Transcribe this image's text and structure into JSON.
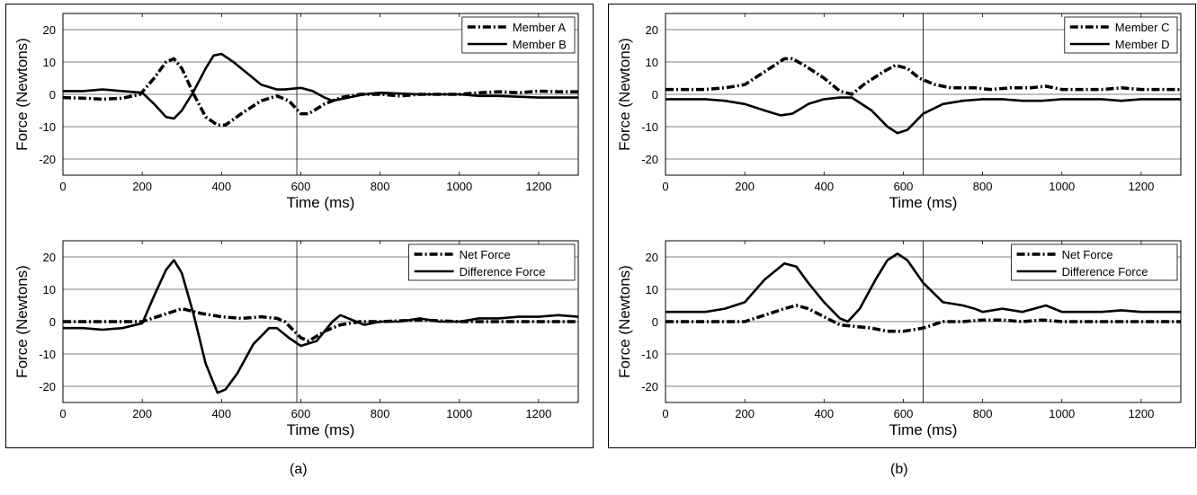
{
  "figure": {
    "panel_labels": [
      "(a)",
      "(b)"
    ]
  },
  "chart_data": [
    {
      "id": "a-top",
      "type": "line",
      "xlabel": "Time (ms)",
      "ylabel": "Force (Newtons)",
      "xlim": [
        0,
        1300
      ],
      "ylim": [
        -25,
        25
      ],
      "xticks": [
        0,
        200,
        400,
        600,
        800,
        1000,
        1200
      ],
      "yticks": [
        -20,
        -10,
        0,
        10,
        20
      ],
      "grid": "horizontal",
      "legend": "top-right",
      "vline": 590,
      "series": [
        {
          "name": "Member A",
          "style": "dashdot",
          "points": [
            [
              0,
              -1
            ],
            [
              50,
              -1.2
            ],
            [
              100,
              -1.5
            ],
            [
              150,
              -1.2
            ],
            [
              195,
              0
            ],
            [
              230,
              5
            ],
            [
              260,
              10
            ],
            [
              280,
              11
            ],
            [
              300,
              8
            ],
            [
              330,
              0
            ],
            [
              360,
              -7
            ],
            [
              390,
              -9.5
            ],
            [
              410,
              -9.5
            ],
            [
              450,
              -6
            ],
            [
              500,
              -2
            ],
            [
              540,
              -0.5
            ],
            [
              570,
              -2
            ],
            [
              600,
              -6
            ],
            [
              620,
              -6
            ],
            [
              660,
              -3
            ],
            [
              700,
              -1
            ],
            [
              750,
              0
            ],
            [
              800,
              0
            ],
            [
              850,
              -0.5
            ],
            [
              900,
              0
            ],
            [
              950,
              0
            ],
            [
              1000,
              0
            ],
            [
              1050,
              0.5
            ],
            [
              1100,
              0.8
            ],
            [
              1150,
              0.5
            ],
            [
              1200,
              1
            ],
            [
              1250,
              0.8
            ],
            [
              1300,
              0.8
            ]
          ]
        },
        {
          "name": "Member B",
          "style": "solid",
          "points": [
            [
              0,
              1
            ],
            [
              50,
              1
            ],
            [
              100,
              1.5
            ],
            [
              150,
              1
            ],
            [
              200,
              0.5
            ],
            [
              230,
              -3
            ],
            [
              260,
              -7
            ],
            [
              280,
              -7.5
            ],
            [
              300,
              -5
            ],
            [
              330,
              1
            ],
            [
              360,
              8
            ],
            [
              380,
              12
            ],
            [
              400,
              12.5
            ],
            [
              430,
              10
            ],
            [
              470,
              6
            ],
            [
              500,
              3
            ],
            [
              540,
              1.5
            ],
            [
              560,
              1.5
            ],
            [
              600,
              2
            ],
            [
              630,
              1
            ],
            [
              660,
              -1
            ],
            [
              680,
              -2
            ],
            [
              720,
              -1
            ],
            [
              760,
              0
            ],
            [
              800,
              0.5
            ],
            [
              900,
              0
            ],
            [
              1000,
              0
            ],
            [
              1050,
              -0.5
            ],
            [
              1100,
              -0.5
            ],
            [
              1200,
              -1
            ],
            [
              1300,
              -1
            ]
          ]
        }
      ]
    },
    {
      "id": "a-bottom",
      "type": "line",
      "xlabel": "Time (ms)",
      "ylabel": "Force (Newtons)",
      "xlim": [
        0,
        1300
      ],
      "ylim": [
        -25,
        25
      ],
      "xticks": [
        0,
        200,
        400,
        600,
        800,
        1000,
        1200
      ],
      "yticks": [
        -20,
        -10,
        0,
        10,
        20
      ],
      "grid": "horizontal",
      "legend": "top-right",
      "vline": 590,
      "series": [
        {
          "name": "Net Force",
          "style": "dashdot",
          "points": [
            [
              0,
              0
            ],
            [
              100,
              0
            ],
            [
              200,
              0
            ],
            [
              250,
              2
            ],
            [
              300,
              4
            ],
            [
              350,
              2.5
            ],
            [
              400,
              1.5
            ],
            [
              450,
              1
            ],
            [
              500,
              1.5
            ],
            [
              540,
              1
            ],
            [
              560,
              0
            ],
            [
              600,
              -5
            ],
            [
              620,
              -6
            ],
            [
              660,
              -3
            ],
            [
              700,
              -1
            ],
            [
              750,
              0
            ],
            [
              800,
              0
            ],
            [
              900,
              0.5
            ],
            [
              1000,
              0
            ],
            [
              1100,
              0
            ],
            [
              1200,
              0
            ],
            [
              1300,
              0
            ]
          ]
        },
        {
          "name": "Difference Force",
          "style": "solid",
          "points": [
            [
              0,
              -2
            ],
            [
              50,
              -2
            ],
            [
              100,
              -2.5
            ],
            [
              150,
              -2
            ],
            [
              200,
              -0.5
            ],
            [
              230,
              8
            ],
            [
              260,
              16
            ],
            [
              280,
              19
            ],
            [
              300,
              15
            ],
            [
              330,
              2
            ],
            [
              360,
              -13
            ],
            [
              390,
              -22
            ],
            [
              410,
              -21
            ],
            [
              440,
              -16
            ],
            [
              480,
              -7
            ],
            [
              520,
              -2
            ],
            [
              540,
              -2
            ],
            [
              570,
              -5
            ],
            [
              600,
              -7.5
            ],
            [
              640,
              -6
            ],
            [
              680,
              0
            ],
            [
              700,
              2
            ],
            [
              720,
              1
            ],
            [
              760,
              -1
            ],
            [
              800,
              0
            ],
            [
              850,
              0
            ],
            [
              900,
              1
            ],
            [
              950,
              0
            ],
            [
              1000,
              0
            ],
            [
              1050,
              1
            ],
            [
              1100,
              1
            ],
            [
              1150,
              1.5
            ],
            [
              1200,
              1.5
            ],
            [
              1250,
              2
            ],
            [
              1300,
              1.5
            ]
          ]
        }
      ]
    },
    {
      "id": "b-top",
      "type": "line",
      "xlabel": "Time (ms)",
      "ylabel": "Force (Newtons)",
      "xlim": [
        0,
        1300
      ],
      "ylim": [
        -25,
        25
      ],
      "xticks": [
        0,
        200,
        400,
        600,
        800,
        1000,
        1200
      ],
      "yticks": [
        -20,
        -10,
        0,
        10,
        20
      ],
      "grid": "horizontal",
      "legend": "top-right",
      "vline": 650,
      "series": [
        {
          "name": "Member C",
          "style": "dashdot",
          "points": [
            [
              0,
              1.5
            ],
            [
              50,
              1.5
            ],
            [
              100,
              1.5
            ],
            [
              150,
              2
            ],
            [
              200,
              3
            ],
            [
              250,
              7
            ],
            [
              300,
              11
            ],
            [
              320,
              11
            ],
            [
              350,
              9
            ],
            [
              400,
              5
            ],
            [
              440,
              1
            ],
            [
              470,
              0
            ],
            [
              500,
              3
            ],
            [
              550,
              7
            ],
            [
              580,
              9
            ],
            [
              610,
              8
            ],
            [
              640,
              5
            ],
            [
              680,
              3
            ],
            [
              720,
              2
            ],
            [
              780,
              2
            ],
            [
              820,
              1.5
            ],
            [
              870,
              2
            ],
            [
              920,
              2
            ],
            [
              960,
              2.5
            ],
            [
              1000,
              1.5
            ],
            [
              1050,
              1.5
            ],
            [
              1100,
              1.5
            ],
            [
              1150,
              2
            ],
            [
              1200,
              1.5
            ],
            [
              1250,
              1.5
            ],
            [
              1300,
              1.5
            ]
          ]
        },
        {
          "name": "Member D",
          "style": "solid",
          "points": [
            [
              0,
              -1.5
            ],
            [
              100,
              -1.5
            ],
            [
              150,
              -2
            ],
            [
              200,
              -3
            ],
            [
              250,
              -5
            ],
            [
              290,
              -6.5
            ],
            [
              320,
              -6
            ],
            [
              360,
              -3
            ],
            [
              400,
              -1.5
            ],
            [
              440,
              -1
            ],
            [
              470,
              -1
            ],
            [
              520,
              -5
            ],
            [
              560,
              -10
            ],
            [
              585,
              -12
            ],
            [
              610,
              -11
            ],
            [
              650,
              -6
            ],
            [
              700,
              -3
            ],
            [
              750,
              -2
            ],
            [
              800,
              -1.5
            ],
            [
              850,
              -1.5
            ],
            [
              900,
              -2
            ],
            [
              950,
              -2
            ],
            [
              1000,
              -1.5
            ],
            [
              1100,
              -1.5
            ],
            [
              1150,
              -2
            ],
            [
              1200,
              -1.5
            ],
            [
              1300,
              -1.5
            ]
          ]
        }
      ]
    },
    {
      "id": "b-bottom",
      "type": "line",
      "xlabel": "Time (ms)",
      "ylabel": "Force (Newtons)",
      "xlim": [
        0,
        1300
      ],
      "ylim": [
        -25,
        25
      ],
      "xticks": [
        0,
        200,
        400,
        600,
        800,
        1000,
        1200
      ],
      "yticks": [
        -20,
        -10,
        0,
        10,
        20
      ],
      "grid": "horizontal",
      "legend": "top-right",
      "vline": 650,
      "series": [
        {
          "name": "Net Force",
          "style": "dashdot",
          "points": [
            [
              0,
              0
            ],
            [
              100,
              0
            ],
            [
              200,
              0
            ],
            [
              250,
              2
            ],
            [
              300,
              4
            ],
            [
              330,
              5
            ],
            [
              360,
              4
            ],
            [
              400,
              1.5
            ],
            [
              440,
              -1
            ],
            [
              480,
              -1.5
            ],
            [
              520,
              -2
            ],
            [
              560,
              -3
            ],
            [
              600,
              -3
            ],
            [
              650,
              -2
            ],
            [
              700,
              0
            ],
            [
              750,
              0
            ],
            [
              800,
              0.5
            ],
            [
              850,
              0.5
            ],
            [
              900,
              0
            ],
            [
              950,
              0.5
            ],
            [
              1000,
              0
            ],
            [
              1100,
              0
            ],
            [
              1200,
              0
            ],
            [
              1300,
              0
            ]
          ]
        },
        {
          "name": "Difference Force",
          "style": "solid",
          "points": [
            [
              0,
              3
            ],
            [
              50,
              3
            ],
            [
              100,
              3
            ],
            [
              150,
              4
            ],
            [
              200,
              6
            ],
            [
              250,
              13
            ],
            [
              300,
              18
            ],
            [
              330,
              17
            ],
            [
              360,
              12
            ],
            [
              400,
              6
            ],
            [
              440,
              1
            ],
            [
              460,
              0
            ],
            [
              490,
              4
            ],
            [
              530,
              13
            ],
            [
              560,
              19
            ],
            [
              585,
              21
            ],
            [
              610,
              19
            ],
            [
              650,
              12
            ],
            [
              700,
              6
            ],
            [
              750,
              5
            ],
            [
              780,
              4
            ],
            [
              800,
              3
            ],
            [
              850,
              4
            ],
            [
              900,
              3
            ],
            [
              960,
              5
            ],
            [
              1000,
              3
            ],
            [
              1050,
              3
            ],
            [
              1100,
              3
            ],
            [
              1150,
              3.5
            ],
            [
              1200,
              3
            ],
            [
              1250,
              3
            ],
            [
              1300,
              3
            ]
          ]
        }
      ]
    }
  ]
}
